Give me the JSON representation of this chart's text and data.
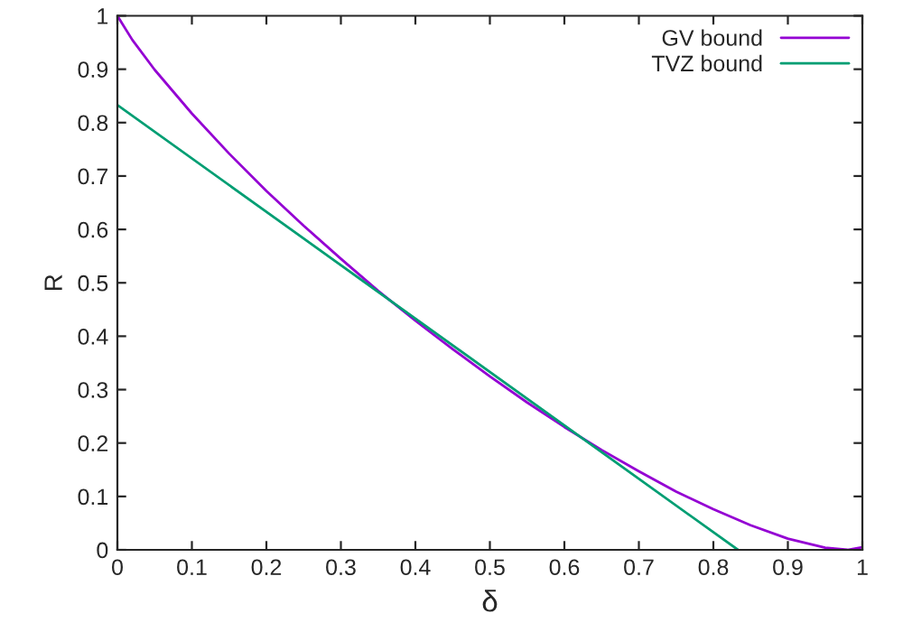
{
  "chart_data": {
    "type": "line",
    "xlabel": "δ",
    "ylabel": "R",
    "series": [
      {
        "name": "GV bound",
        "color": "#9400d3",
        "x": [
          0,
          0.02,
          0.05,
          0.1,
          0.15,
          0.2,
          0.25,
          0.3,
          0.35,
          0.4,
          0.45,
          0.5,
          0.55,
          0.6,
          0.65,
          0.7,
          0.75,
          0.8,
          0.85,
          0.9,
          0.95,
          0.98,
          1
        ],
        "values": [
          1,
          0.955,
          0.899,
          0.817,
          0.742,
          0.672,
          0.607,
          0.545,
          0.485,
          0.429,
          0.376,
          0.325,
          0.276,
          0.23,
          0.187,
          0.147,
          0.109,
          0.076,
          0.046,
          0.021,
          0.004,
          0,
          0.005
        ]
      },
      {
        "name": "TVZ bound",
        "color": "#009e73",
        "x": [
          0,
          0.833
        ],
        "values": [
          0.833,
          0
        ]
      }
    ],
    "xlim": [
      0,
      1
    ],
    "ylim": [
      0,
      1
    ],
    "xticks": [
      0,
      0.1,
      0.2,
      0.3,
      0.4,
      0.5,
      0.6,
      0.7,
      0.8,
      0.9,
      1
    ],
    "yticks": [
      0,
      0.1,
      0.2,
      0.3,
      0.4,
      0.5,
      0.6,
      0.7,
      0.8,
      0.9,
      1
    ],
    "grid": false,
    "legend": "top right",
    "marker": "none",
    "line_style": "solid"
  }
}
